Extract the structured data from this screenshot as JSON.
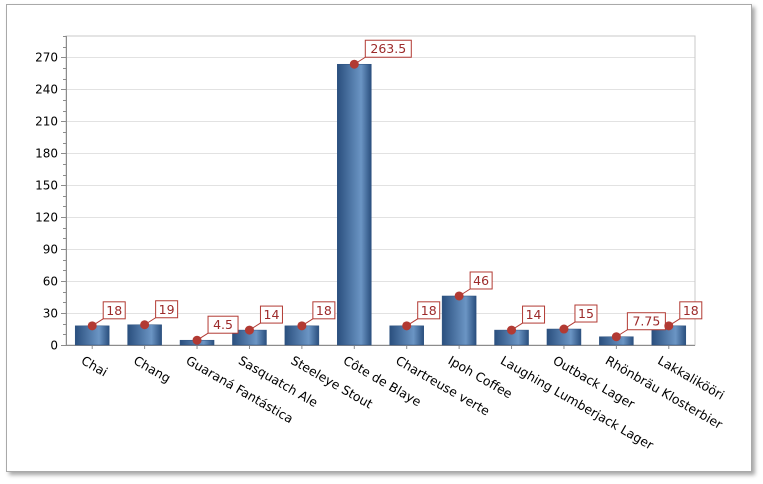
{
  "chart_data": {
    "type": "bar",
    "title": "",
    "xlabel": "",
    "ylabel": "",
    "categories": [
      "Chai",
      "Chang",
      "Guaraná Fantástica",
      "Sasquatch Ale",
      "Steeleye Stout",
      "Côte de Blaye",
      "Chartreuse verte",
      "Ipoh Coffee",
      "Laughing Lumberjack Lager",
      "Outback Lager",
      "Rhönbräu Klosterbier",
      "Lakkalikööri"
    ],
    "values": [
      18,
      19,
      4.5,
      14,
      18,
      263.5,
      18,
      46,
      14,
      15,
      7.75,
      18
    ],
    "data_labels": [
      "18",
      "19",
      "4.5",
      "14",
      "18",
      "263.5",
      "18",
      "46",
      "14",
      "15",
      "7.75",
      "18"
    ],
    "ylim": [
      0,
      290
    ],
    "yticks": [
      0,
      30,
      60,
      90,
      120,
      150,
      180,
      210,
      240,
      270
    ],
    "minor_tick_step": 10,
    "grid": true,
    "legend": "none",
    "colors": {
      "bar_dark": "#2a4f7e",
      "bar_light": "#6b95c4",
      "marker": "#b23a33",
      "label_border": "#b23a33",
      "label_text": "#9c2a2a",
      "grid": "#e2e2e2",
      "axis": "#8c8c8c",
      "plot_border": "#c8c8c8"
    }
  }
}
